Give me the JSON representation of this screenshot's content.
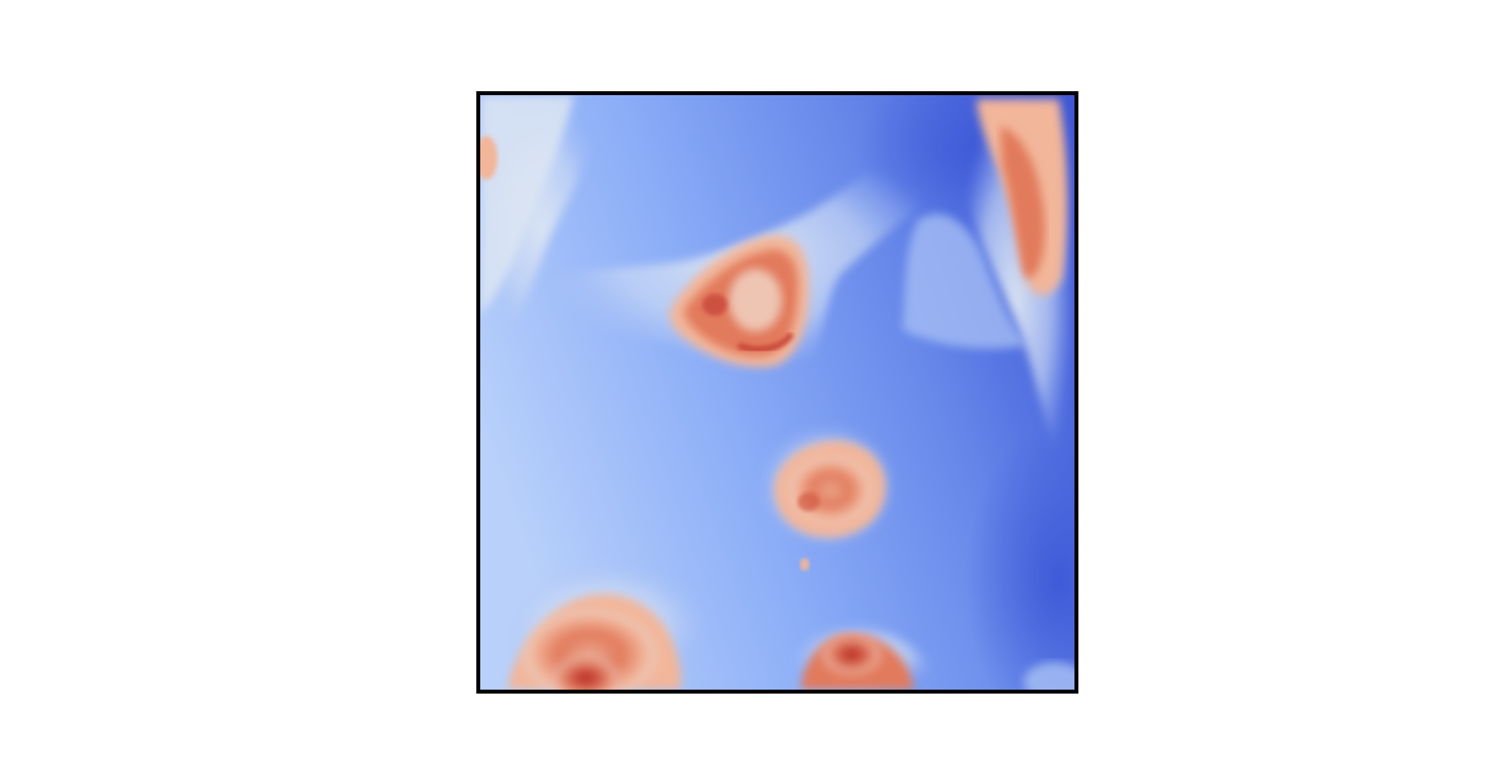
{
  "figure": {
    "background_color": "#ffffff",
    "frame_color": "#000000"
  },
  "heatmap": {
    "colormap": "coolwarm",
    "palette": {
      "cool_dark": "#3d57d6",
      "cool_mid": "#6f93f2",
      "cool_light": "#b8d0fa",
      "neutral": "#dde6f3",
      "warm_light": "#f2b69a",
      "warm_mid": "#e27a5c",
      "warm_dark": "#b5231f"
    },
    "regions": [
      "cell-top-center",
      "cell-right-edge",
      "cell-left-edge",
      "cell-lower-center",
      "cell-bottom-left",
      "cell-bottom-center"
    ]
  }
}
